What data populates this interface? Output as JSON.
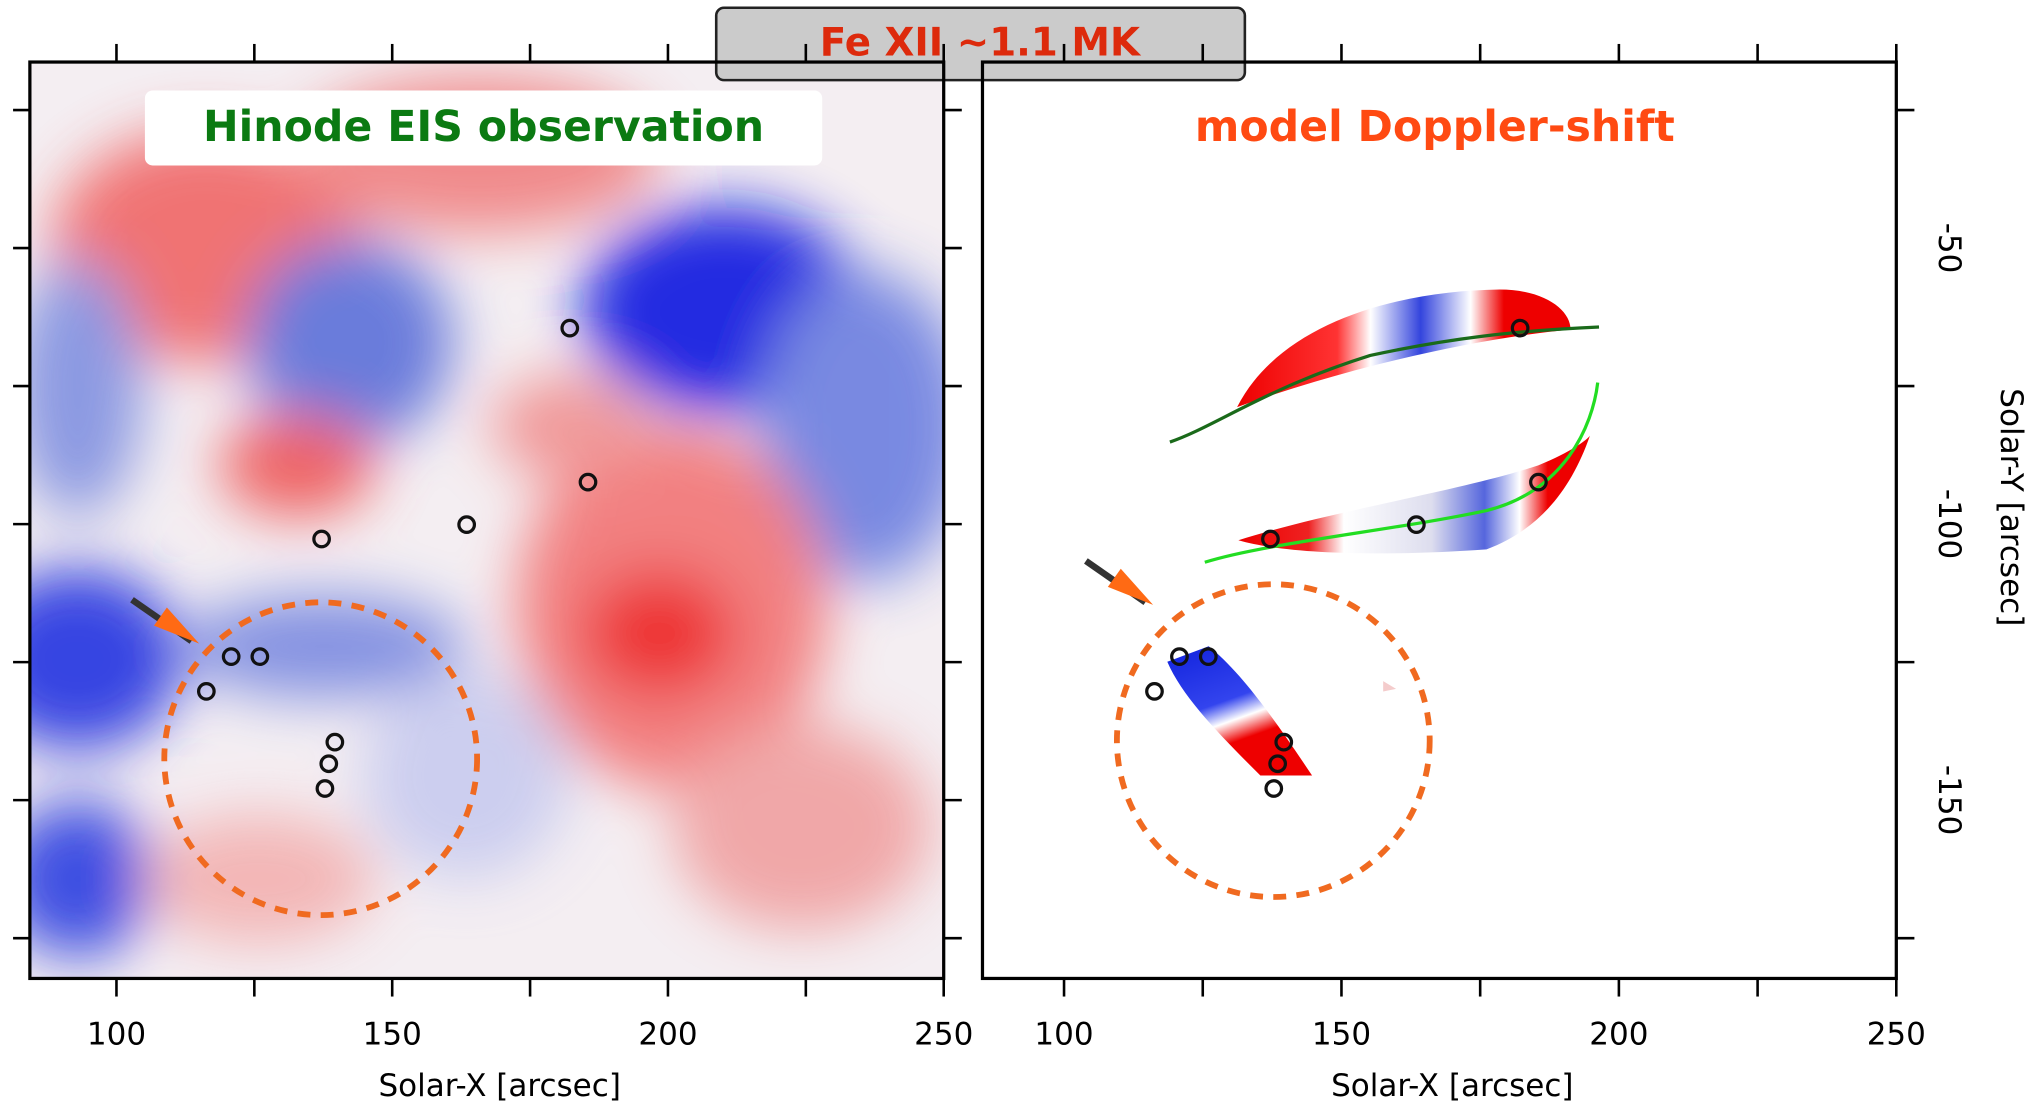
{
  "title": "Fe XII ~1.1 MK",
  "chart_data": [
    {
      "type": "image",
      "title": "Hinode EIS observation",
      "title_color": "#0b7a12",
      "xlabel": "Solar-X [arcsec]",
      "xlim": [
        84.3,
        250
      ],
      "xticks": [
        100,
        150,
        200,
        250
      ],
      "xticks_minor": [
        125,
        175,
        225
      ],
      "ylim": [
        -182.3,
        -16.3
      ],
      "yticks_minor": [
        -25,
        -50,
        -75,
        -100,
        -125,
        -150,
        -175
      ],
      "points": {
        "x": [
          182.2,
          185.5,
          137.2,
          163.5,
          120.8,
          126.0,
          116.3,
          139.6,
          138.5,
          137.8
        ],
        "y": [
          -64.5,
          -92.4,
          -102.7,
          -100.1,
          -124.0,
          -124.0,
          -130.3,
          -139.5,
          -143.4,
          -147.9
        ]
      }
    },
    {
      "type": "image",
      "title": "model Doppler-shift",
      "title_color": "#ff4a12",
      "xlabel": "Solar-X [arcsec]",
      "ylabel": "Solar-Y [arcsec]",
      "xlim": [
        85.3,
        250
      ],
      "xticks": [
        100,
        150,
        200,
        250
      ],
      "xticks_minor": [
        125,
        175,
        225
      ],
      "ylim": [
        -182.3,
        -16.3
      ],
      "yticks": [
        -50,
        -100,
        -150
      ],
      "yticks_minor": [
        -25,
        -75,
        -125,
        -175
      ],
      "points": {
        "x": [
          182.2,
          185.5,
          137.2,
          163.5,
          120.8,
          126.0,
          116.3,
          139.6,
          138.5,
          137.8
        ],
        "y": [
          -64.5,
          -92.4,
          -102.7,
          -100.1,
          -124.0,
          -124.0,
          -130.3,
          -139.5,
          -143.4,
          -147.9
        ]
      }
    }
  ]
}
